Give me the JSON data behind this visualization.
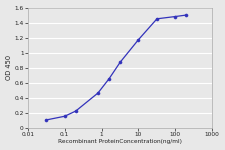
{
  "x": [
    0.031,
    0.1,
    0.2,
    0.8,
    1.6,
    3.2,
    10,
    32,
    100,
    200
  ],
  "y": [
    0.1,
    0.15,
    0.22,
    0.46,
    0.65,
    0.87,
    1.17,
    1.45,
    1.48,
    1.5
  ],
  "xlim": [
    0.01,
    1000
  ],
  "ylim": [
    0,
    1.6
  ],
  "yticks": [
    0,
    0.2,
    0.4,
    0.6,
    0.8,
    1.0,
    1.2,
    1.4,
    1.6
  ],
  "xticks": [
    0.01,
    0.1,
    1,
    10,
    100,
    1000
  ],
  "xtick_labels": [
    "0.01",
    "0.1",
    "1",
    "10",
    "100",
    "1000"
  ],
  "xlabel": "Recombinant ProteinConcentration(ng/ml)",
  "ylabel": "OD 450",
  "line_color": "#3333BB",
  "marker_color": "#3333BB",
  "bg_color": "#e8e8e8",
  "plot_bg_color": "#e8e8e8",
  "grid_color": "#ffffff",
  "spine_color": "#aaaaaa"
}
